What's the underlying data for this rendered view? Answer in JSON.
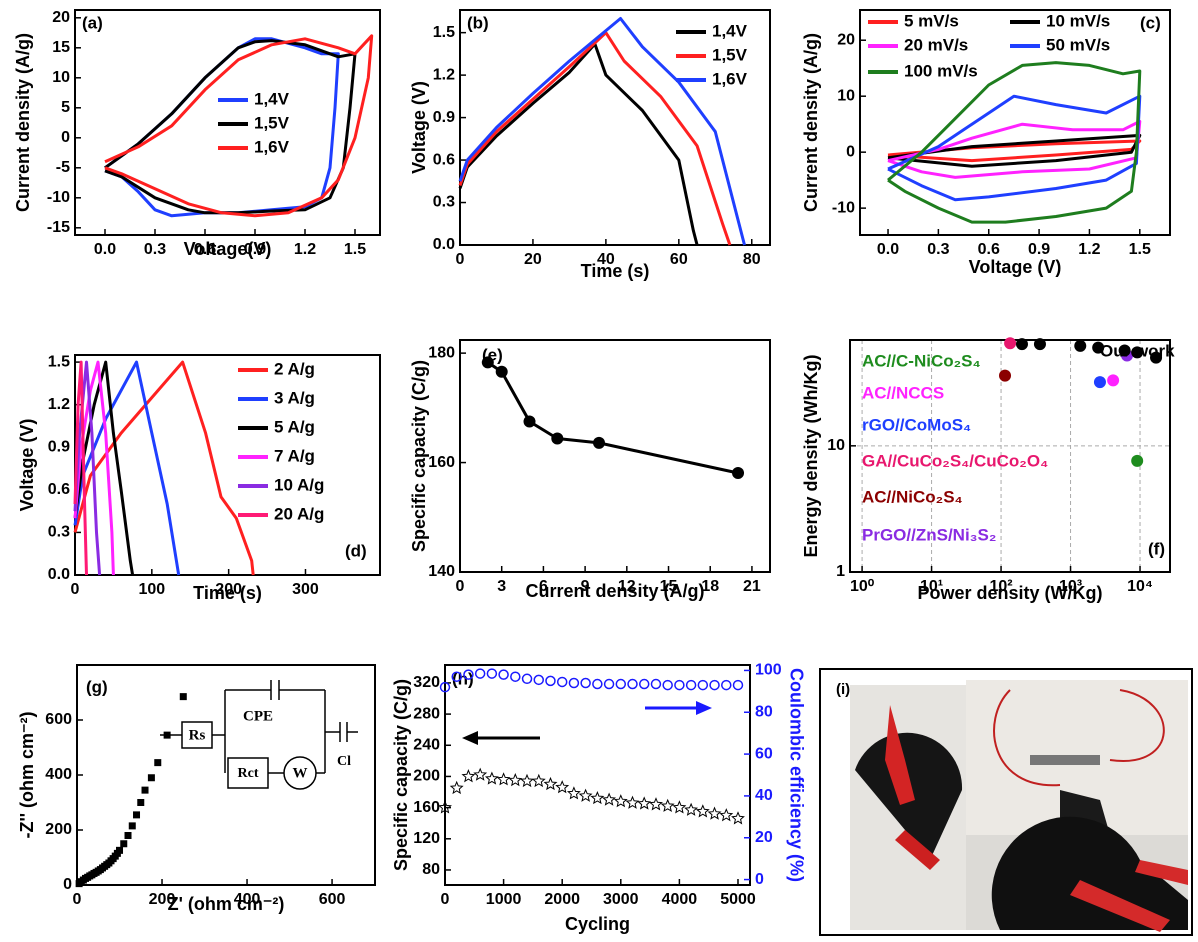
{
  "chart_data": [
    {
      "type": "line",
      "label": "(a)",
      "xlabel": "Voltage(V)",
      "ylabel": "Current density (A/g)",
      "xlim": [
        -0.18,
        1.65
      ],
      "ylim": [
        -16.2,
        21.3
      ],
      "xticks": [
        {
          "value": 0,
          "label": "0.0"
        },
        0.3,
        0.6,
        0.9,
        1.2,
        1.5
      ],
      "yticks": [
        -15,
        -10,
        -5,
        0,
        5,
        10,
        15,
        20
      ],
      "series": [
        {
          "name": "1,4V",
          "color": "#1f3fff",
          "x": [
            0,
            0.2,
            0.4,
            0.6,
            0.8,
            0.9,
            1.0,
            1.2,
            1.3,
            1.4,
            1.38,
            1.35,
            1.3,
            1.2,
            1.0,
            0.8,
            0.6,
            0.4,
            0.3,
            0.2,
            0.1,
            0
          ],
          "values": [
            -5,
            -1,
            4,
            10,
            15,
            16.5,
            16.5,
            15,
            14,
            14,
            5,
            -5,
            -10,
            -11.5,
            -12,
            -12.5,
            -12.5,
            -13,
            -12,
            -9,
            -6.5,
            -5.5
          ]
        },
        {
          "name": "1,5V",
          "color": "#000000",
          "x": [
            0,
            0.2,
            0.4,
            0.6,
            0.8,
            0.9,
            1.0,
            1.2,
            1.4,
            1.5,
            1.47,
            1.43,
            1.35,
            1.2,
            1.0,
            0.8,
            0.6,
            0.5,
            0.3,
            0.1,
            0
          ],
          "values": [
            -5,
            -1,
            4,
            10,
            15,
            16,
            16.2,
            15.5,
            13.5,
            14,
            5,
            -5,
            -10,
            -12,
            -12.2,
            -12.5,
            -12.5,
            -12,
            -10,
            -6.5,
            -5.5
          ]
        },
        {
          "name": "1,6V",
          "color": "#ff2020",
          "x": [
            0,
            0.2,
            0.4,
            0.6,
            0.8,
            1.0,
            1.2,
            1.4,
            1.5,
            1.6,
            1.58,
            1.5,
            1.4,
            1.3,
            1.1,
            0.9,
            0.7,
            0.5,
            0.3,
            0.1,
            0
          ],
          "values": [
            -4,
            -1.5,
            2,
            8,
            13,
            15.5,
            16.5,
            15,
            14,
            17,
            10,
            0,
            -7,
            -10,
            -12.5,
            -13,
            -12.5,
            -11,
            -8.5,
            -6,
            -5
          ]
        }
      ]
    },
    {
      "type": "line",
      "label": "(b)",
      "xlabel": "Time (s)",
      "ylabel": "Voltage (V)",
      "xlim": [
        0,
        85
      ],
      "ylim": [
        0,
        1.66
      ],
      "xticks": [
        0,
        20,
        40,
        60,
        80
      ],
      "yticks": [
        {
          "value": 0,
          "label": "0.0"
        },
        0.3,
        0.6,
        0.9,
        1.2,
        1.5
      ],
      "series": [
        {
          "name": "1,4V",
          "color": "#000000",
          "x": [
            0,
            2,
            10,
            20,
            30,
            37,
            40,
            50,
            60,
            64,
            65
          ],
          "values": [
            0.4,
            0.55,
            0.77,
            1.0,
            1.22,
            1.42,
            1.2,
            0.95,
            0.6,
            0.1,
            0
          ]
        },
        {
          "name": "1,5V",
          "color": "#ff2020",
          "x": [
            0,
            2,
            10,
            20,
            30,
            40,
            45,
            55,
            65,
            72,
            74
          ],
          "values": [
            0.42,
            0.57,
            0.8,
            1.03,
            1.26,
            1.5,
            1.3,
            1.05,
            0.7,
            0.15,
            0
          ]
        },
        {
          "name": "1,6V",
          "color": "#1f3fff",
          "x": [
            0,
            2,
            10,
            20,
            30,
            44,
            50,
            60,
            70,
            76,
            78
          ],
          "values": [
            0.45,
            0.6,
            0.83,
            1.07,
            1.3,
            1.6,
            1.4,
            1.15,
            0.8,
            0.2,
            0
          ]
        }
      ]
    },
    {
      "type": "line",
      "label": "(c)",
      "xlabel": "Voltage (V)",
      "ylabel": "Current density (A/g)",
      "xlim": [
        -0.167,
        1.68
      ],
      "ylim": [
        -14.8,
        25.4
      ],
      "xticks": [
        {
          "value": 0,
          "label": "0.0"
        },
        0.3,
        0.6,
        0.9,
        1.2,
        1.5
      ],
      "yticks": [
        -10,
        0,
        10,
        20
      ],
      "series": [
        {
          "name": "5 mV/s",
          "color": "#ff2020",
          "x": [
            0,
            0.5,
            1.0,
            1.5,
            1.45,
            1.0,
            0.5,
            0
          ],
          "values": [
            -0.5,
            0.8,
            1.5,
            2,
            0.5,
            -0.5,
            -1.5,
            -0.5
          ]
        },
        {
          "name": "10 mV/s",
          "color": "#000000",
          "x": [
            0,
            0.5,
            1.0,
            1.5,
            1.45,
            1.0,
            0.5,
            0
          ],
          "values": [
            -1,
            1,
            2,
            3,
            0,
            -1.5,
            -2.5,
            -1
          ]
        },
        {
          "name": "20 mV/s",
          "color": "#ff22ff",
          "x": [
            0,
            0.3,
            0.5,
            0.8,
            1.1,
            1.4,
            1.5,
            1.48,
            1.2,
            0.8,
            0.4,
            0.2,
            0
          ],
          "values": [
            -1.5,
            0.5,
            2.5,
            5,
            4,
            4,
            5.5,
            -1,
            -3,
            -3.5,
            -4.5,
            -3.5,
            -1.5
          ]
        },
        {
          "name": "50 mV/s",
          "color": "#1f3fff",
          "x": [
            0,
            0.3,
            0.5,
            0.75,
            1.0,
            1.3,
            1.5,
            1.48,
            1.3,
            1.0,
            0.6,
            0.4,
            0.2,
            0
          ],
          "values": [
            -3,
            1,
            5,
            10,
            8.5,
            7,
            10,
            -2,
            -5,
            -6.5,
            -8,
            -8.5,
            -6,
            -3
          ]
        },
        {
          "name": "100 mV/s",
          "color": "#1e7d1e",
          "x": [
            0,
            0.2,
            0.4,
            0.6,
            0.8,
            1.0,
            1.2,
            1.4,
            1.5,
            1.48,
            1.45,
            1.3,
            1.0,
            0.7,
            0.5,
            0.3,
            0.1,
            0
          ],
          "values": [
            -5,
            0,
            6,
            12,
            15.5,
            16,
            15.5,
            14,
            14.5,
            0,
            -7,
            -10,
            -11.5,
            -12.5,
            -12.5,
            -10,
            -7,
            -5
          ]
        }
      ]
    },
    {
      "type": "line",
      "label": "(d)",
      "xlabel": "Time (s)",
      "ylabel": "Voltage (V)",
      "xlim": [
        0,
        397
      ],
      "ylim": [
        0,
        1.55
      ],
      "xticks": [
        0,
        100,
        200,
        300
      ],
      "yticks": [
        {
          "value": 0,
          "label": "0.0"
        },
        0.3,
        0.6,
        0.9,
        1.2,
        1.5
      ],
      "series": [
        {
          "name": "2  A/g",
          "color": "#ff2020",
          "x": [
            0,
            20,
            60,
            100,
            140,
            170,
            190,
            210,
            230,
            232
          ],
          "values": [
            0.3,
            0.7,
            1.0,
            1.25,
            1.5,
            1.0,
            0.55,
            0.4,
            0.1,
            0
          ]
        },
        {
          "name": "3  A/g",
          "color": "#1f3fff",
          "x": [
            0,
            10,
            40,
            80,
            100,
            120,
            132,
            135
          ],
          "values": [
            0.35,
            0.7,
            1.1,
            1.5,
            1.0,
            0.5,
            0.1,
            0
          ]
        },
        {
          "name": "5  A/g",
          "color": "#000000",
          "x": [
            0,
            10,
            25,
            40,
            50,
            60,
            72,
            75
          ],
          "values": [
            0.4,
            0.8,
            1.2,
            1.5,
            1.0,
            0.6,
            0.1,
            0
          ]
        },
        {
          "name": "7  A/g",
          "color": "#ff22ff",
          "x": [
            0,
            8,
            20,
            30,
            40,
            48,
            50
          ],
          "values": [
            0.4,
            0.9,
            1.3,
            1.5,
            1.0,
            0.3,
            0
          ]
        },
        {
          "name": "10  A/g",
          "color": "#8a2be2",
          "x": [
            0,
            6,
            15,
            22,
            28,
            32
          ],
          "values": [
            0.45,
            1.0,
            1.5,
            1.0,
            0.3,
            0
          ]
        },
        {
          "name": "20  A/g",
          "color": "#ff1a75",
          "x": [
            0,
            4,
            8,
            12,
            15
          ],
          "values": [
            0.5,
            1.2,
            1.5,
            0.6,
            0
          ]
        }
      ]
    },
    {
      "type": "line",
      "label": "(e)",
      "xlabel": "Current density (A/g)",
      "ylabel": "Specific capacity (C/g)",
      "xlim": [
        0,
        22.3
      ],
      "ylim": [
        140,
        182.4
      ],
      "xticks": [
        0,
        3,
        6,
        9,
        12,
        15,
        18,
        21
      ],
      "yticks": [
        140,
        160,
        180
      ],
      "series": [
        {
          "color": "#000000",
          "marker": "circle",
          "x": [
            2,
            3,
            5,
            7,
            10,
            20
          ],
          "values": [
            178.3,
            176.6,
            167.5,
            164.4,
            163.6,
            158.1
          ]
        }
      ]
    },
    {
      "type": "scatter",
      "label": "(f)",
      "xlabel": "Power density (W/Kg)",
      "ylabel": "Energy density (Wh/Kg)",
      "xlog": true,
      "ylog": true,
      "grid": true,
      "xlim": [
        0.67,
        27000
      ],
      "ylim": [
        1,
        69
      ],
      "xticks": [
        {
          "value": 1,
          "label": "10⁰"
        },
        {
          "value": 10,
          "label": "10¹"
        },
        {
          "value": 100,
          "label": "10²"
        },
        {
          "value": 1000,
          "label": "10³"
        },
        {
          "value": 10000,
          "label": "10⁴"
        }
      ],
      "yticks": [
        1,
        10
      ],
      "series": [
        {
          "name": "AC//C-NiCo₂S₄",
          "color": "#1e8c1e",
          "x": [
            9100
          ],
          "values": [
            7.6
          ]
        },
        {
          "name": "AC//NCCS",
          "color": "#ff22ff",
          "x": [
            4100
          ],
          "values": [
            33
          ]
        },
        {
          "name": "rGO//CoMoS₄",
          "color": "#1f3fff",
          "x": [
            2650
          ],
          "values": [
            32
          ]
        },
        {
          "name": "GA//CuCo₂S₄/CuCo₂O₄",
          "color": "#e8176e",
          "x": [
            135
          ],
          "values": [
            65
          ]
        },
        {
          "name": "AC//NiCo₂S₄",
          "color": "#8b0000",
          "x": [
            114
          ],
          "values": [
            36
          ]
        },
        {
          "name": "PrGO//ZnS/Ni₃S₂",
          "color": "#8a2be2",
          "x": [
            6500
          ],
          "values": [
            52
          ]
        },
        {
          "name": "Our work",
          "color": "#000000",
          "x": [
            200,
            363,
            1380,
            2500,
            6000,
            9100,
            17000
          ],
          "values": [
            64,
            64,
            62,
            60,
            57,
            55,
            50
          ]
        }
      ]
    },
    {
      "type": "scatter",
      "label": "(g)",
      "xlabel": "Z' (ohm cm⁻²)",
      "ylabel": "-Z'' (ohm cm⁻²)",
      "xlim": [
        0,
        701
      ],
      "ylim": [
        0,
        800
      ],
      "xticks": [
        0,
        200,
        400,
        600
      ],
      "yticks": [
        0,
        200,
        400,
        600
      ],
      "annotations": [
        "Rs",
        "CPE",
        "Rct",
        "W",
        "Cl"
      ],
      "series": [
        {
          "color": "#000000",
          "marker": "square",
          "x": [
            5,
            10,
            15,
            20,
            25,
            30,
            35,
            40,
            45,
            50,
            55,
            60,
            65,
            70,
            75,
            80,
            85,
            90,
            95,
            100,
            110,
            120,
            130,
            140,
            150,
            160,
            175,
            190,
            212,
            250
          ],
          "values": [
            5,
            12,
            18,
            24,
            28,
            33,
            37,
            42,
            46,
            51,
            56,
            62,
            68,
            74,
            80,
            88,
            96,
            105,
            115,
            126,
            150,
            180,
            215,
            255,
            300,
            345,
            390,
            445,
            545,
            685
          ]
        }
      ]
    },
    {
      "type": "scatter",
      "label": "(h)",
      "xlabel": "Cycling",
      "ylabel": "Specific capacity (C/g)",
      "y2label": "Coulombic efficiency (%)",
      "y2_color": "#1a1aff",
      "xlim": [
        0,
        5205
      ],
      "ylim": [
        60.7,
        343
      ],
      "y2lim": [
        -2.6,
        102.6
      ],
      "xticks": [
        0,
        1000,
        2000,
        3000,
        4000,
        5000
      ],
      "yticks": [
        80,
        120,
        160,
        200,
        240,
        280,
        320
      ],
      "y2ticks": [
        0,
        20,
        40,
        60,
        80,
        100
      ],
      "series": [
        {
          "color": "#000000",
          "marker": "star",
          "x": [
            0,
            200,
            400,
            600,
            800,
            1000,
            1200,
            1400,
            1600,
            1800,
            2000,
            2200,
            2400,
            2600,
            2800,
            3000,
            3200,
            3400,
            3600,
            3800,
            4000,
            4200,
            4400,
            4600,
            4800,
            5000
          ],
          "values": [
            160,
            185,
            200,
            202,
            197,
            196,
            195,
            194,
            194,
            190,
            186,
            178,
            175,
            172,
            170,
            168,
            166,
            165,
            164,
            162,
            160,
            157,
            155,
            152,
            150,
            146
          ]
        },
        {
          "color": "#1a1aff",
          "marker": "circle",
          "axis": "y2",
          "x": [
            0,
            200,
            400,
            600,
            800,
            1000,
            1200,
            1400,
            1600,
            1800,
            2000,
            2200,
            2400,
            2600,
            2800,
            3000,
            3200,
            3400,
            3600,
            3800,
            4000,
            4200,
            4400,
            4600,
            4800,
            5000
          ],
          "values": [
            92,
            97,
            98,
            98.5,
            98.5,
            98,
            97,
            96,
            95.5,
            95,
            94.5,
            94,
            94,
            93.5,
            93.5,
            93.5,
            93.5,
            93.5,
            93.5,
            93,
            93,
            93,
            93,
            93,
            93,
            93
          ]
        }
      ]
    }
  ],
  "photo": {
    "label": "(i)"
  }
}
